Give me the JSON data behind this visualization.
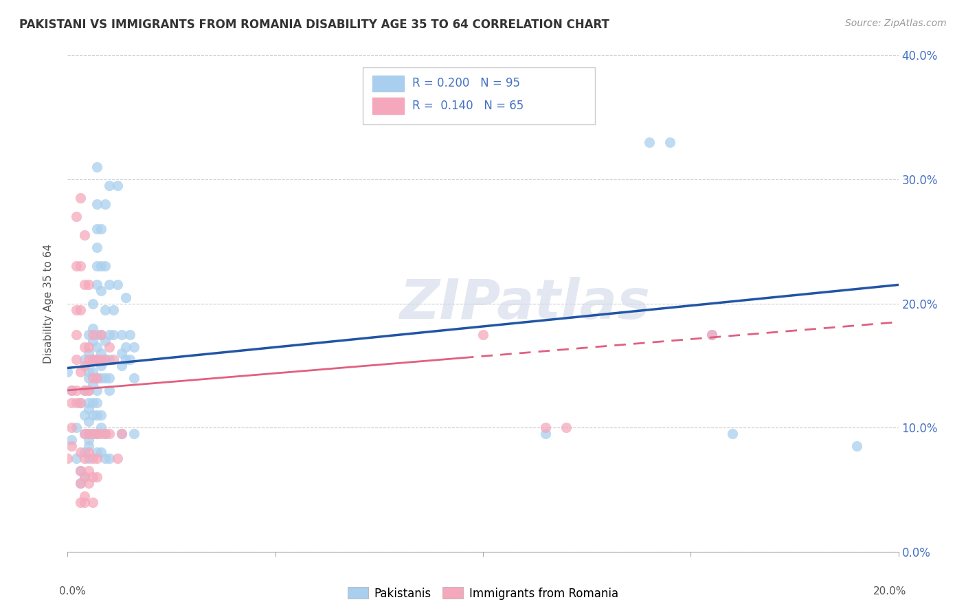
{
  "title": "PAKISTANI VS IMMIGRANTS FROM ROMANIA DISABILITY AGE 35 TO 64 CORRELATION CHART",
  "source": "Source: ZipAtlas.com",
  "ylabel": "Disability Age 35 to 64",
  "x_min": 0.0,
  "x_max": 0.2,
  "y_min": 0.0,
  "y_max": 0.4,
  "pakistanis_R": 0.2,
  "pakistanis_N": 95,
  "romania_R": 0.14,
  "romania_N": 65,
  "pakistanis_color": "#aacfee",
  "romania_color": "#f5a8bc",
  "pakistanis_line_color": "#2255a4",
  "romania_line_color": "#e06080",
  "watermark": "ZIPatlas",
  "pakistanis_trendline": [
    [
      0.0,
      0.148
    ],
    [
      0.2,
      0.215
    ]
  ],
  "romania_trendline": [
    [
      0.0,
      0.13
    ],
    [
      0.2,
      0.185
    ]
  ],
  "pakistanis_scatter": [
    [
      0.0,
      0.145
    ],
    [
      0.001,
      0.13
    ],
    [
      0.001,
      0.09
    ],
    [
      0.002,
      0.1
    ],
    [
      0.002,
      0.075
    ],
    [
      0.003,
      0.12
    ],
    [
      0.003,
      0.065
    ],
    [
      0.003,
      0.055
    ],
    [
      0.004,
      0.155
    ],
    [
      0.004,
      0.13
    ],
    [
      0.004,
      0.11
    ],
    [
      0.004,
      0.095
    ],
    [
      0.004,
      0.08
    ],
    [
      0.004,
      0.06
    ],
    [
      0.005,
      0.175
    ],
    [
      0.005,
      0.16
    ],
    [
      0.005,
      0.145
    ],
    [
      0.005,
      0.14
    ],
    [
      0.005,
      0.13
    ],
    [
      0.005,
      0.12
    ],
    [
      0.005,
      0.115
    ],
    [
      0.005,
      0.105
    ],
    [
      0.005,
      0.095
    ],
    [
      0.005,
      0.09
    ],
    [
      0.005,
      0.085
    ],
    [
      0.005,
      0.075
    ],
    [
      0.006,
      0.2
    ],
    [
      0.006,
      0.18
    ],
    [
      0.006,
      0.17
    ],
    [
      0.006,
      0.155
    ],
    [
      0.006,
      0.145
    ],
    [
      0.006,
      0.135
    ],
    [
      0.006,
      0.12
    ],
    [
      0.006,
      0.11
    ],
    [
      0.006,
      0.095
    ],
    [
      0.007,
      0.31
    ],
    [
      0.007,
      0.28
    ],
    [
      0.007,
      0.26
    ],
    [
      0.007,
      0.245
    ],
    [
      0.007,
      0.23
    ],
    [
      0.007,
      0.215
    ],
    [
      0.007,
      0.175
    ],
    [
      0.007,
      0.165
    ],
    [
      0.007,
      0.155
    ],
    [
      0.007,
      0.14
    ],
    [
      0.007,
      0.13
    ],
    [
      0.007,
      0.12
    ],
    [
      0.007,
      0.11
    ],
    [
      0.007,
      0.095
    ],
    [
      0.007,
      0.08
    ],
    [
      0.008,
      0.26
    ],
    [
      0.008,
      0.23
    ],
    [
      0.008,
      0.21
    ],
    [
      0.008,
      0.175
    ],
    [
      0.008,
      0.16
    ],
    [
      0.008,
      0.15
    ],
    [
      0.008,
      0.14
    ],
    [
      0.008,
      0.11
    ],
    [
      0.008,
      0.1
    ],
    [
      0.008,
      0.08
    ],
    [
      0.009,
      0.28
    ],
    [
      0.009,
      0.23
    ],
    [
      0.009,
      0.195
    ],
    [
      0.009,
      0.17
    ],
    [
      0.009,
      0.155
    ],
    [
      0.009,
      0.14
    ],
    [
      0.009,
      0.095
    ],
    [
      0.009,
      0.075
    ],
    [
      0.01,
      0.295
    ],
    [
      0.01,
      0.215
    ],
    [
      0.01,
      0.175
    ],
    [
      0.01,
      0.155
    ],
    [
      0.01,
      0.14
    ],
    [
      0.01,
      0.13
    ],
    [
      0.01,
      0.075
    ],
    [
      0.011,
      0.195
    ],
    [
      0.011,
      0.175
    ],
    [
      0.012,
      0.295
    ],
    [
      0.012,
      0.215
    ],
    [
      0.013,
      0.175
    ],
    [
      0.013,
      0.16
    ],
    [
      0.013,
      0.15
    ],
    [
      0.013,
      0.095
    ],
    [
      0.014,
      0.205
    ],
    [
      0.014,
      0.165
    ],
    [
      0.014,
      0.155
    ],
    [
      0.015,
      0.175
    ],
    [
      0.015,
      0.155
    ],
    [
      0.016,
      0.165
    ],
    [
      0.016,
      0.14
    ],
    [
      0.016,
      0.095
    ],
    [
      0.14,
      0.33
    ],
    [
      0.145,
      0.33
    ],
    [
      0.155,
      0.175
    ],
    [
      0.16,
      0.095
    ],
    [
      0.19,
      0.085
    ],
    [
      0.115,
      0.095
    ]
  ],
  "romania_scatter": [
    [
      0.0,
      0.075
    ],
    [
      0.001,
      0.13
    ],
    [
      0.001,
      0.12
    ],
    [
      0.001,
      0.1
    ],
    [
      0.001,
      0.085
    ],
    [
      0.002,
      0.27
    ],
    [
      0.002,
      0.23
    ],
    [
      0.002,
      0.195
    ],
    [
      0.002,
      0.175
    ],
    [
      0.002,
      0.155
    ],
    [
      0.002,
      0.13
    ],
    [
      0.002,
      0.12
    ],
    [
      0.003,
      0.285
    ],
    [
      0.003,
      0.23
    ],
    [
      0.003,
      0.195
    ],
    [
      0.003,
      0.145
    ],
    [
      0.003,
      0.12
    ],
    [
      0.003,
      0.08
    ],
    [
      0.003,
      0.065
    ],
    [
      0.003,
      0.055
    ],
    [
      0.003,
      0.04
    ],
    [
      0.004,
      0.255
    ],
    [
      0.004,
      0.215
    ],
    [
      0.004,
      0.165
    ],
    [
      0.004,
      0.15
    ],
    [
      0.004,
      0.13
    ],
    [
      0.004,
      0.095
    ],
    [
      0.004,
      0.075
    ],
    [
      0.004,
      0.06
    ],
    [
      0.004,
      0.045
    ],
    [
      0.004,
      0.04
    ],
    [
      0.005,
      0.215
    ],
    [
      0.005,
      0.165
    ],
    [
      0.005,
      0.155
    ],
    [
      0.005,
      0.13
    ],
    [
      0.005,
      0.095
    ],
    [
      0.005,
      0.08
    ],
    [
      0.005,
      0.065
    ],
    [
      0.005,
      0.055
    ],
    [
      0.006,
      0.175
    ],
    [
      0.006,
      0.155
    ],
    [
      0.006,
      0.14
    ],
    [
      0.006,
      0.095
    ],
    [
      0.006,
      0.075
    ],
    [
      0.006,
      0.06
    ],
    [
      0.006,
      0.04
    ],
    [
      0.007,
      0.155
    ],
    [
      0.007,
      0.14
    ],
    [
      0.007,
      0.095
    ],
    [
      0.007,
      0.075
    ],
    [
      0.007,
      0.06
    ],
    [
      0.008,
      0.175
    ],
    [
      0.008,
      0.155
    ],
    [
      0.008,
      0.095
    ],
    [
      0.009,
      0.155
    ],
    [
      0.009,
      0.095
    ],
    [
      0.01,
      0.165
    ],
    [
      0.01,
      0.095
    ],
    [
      0.011,
      0.155
    ],
    [
      0.012,
      0.075
    ],
    [
      0.013,
      0.095
    ],
    [
      0.1,
      0.175
    ],
    [
      0.115,
      0.1
    ],
    [
      0.12,
      0.1
    ],
    [
      0.155,
      0.175
    ]
  ],
  "x_tick_positions": [
    0.0,
    0.05,
    0.1,
    0.15,
    0.2
  ],
  "y_tick_positions": [
    0.0,
    0.1,
    0.2,
    0.3,
    0.4
  ]
}
